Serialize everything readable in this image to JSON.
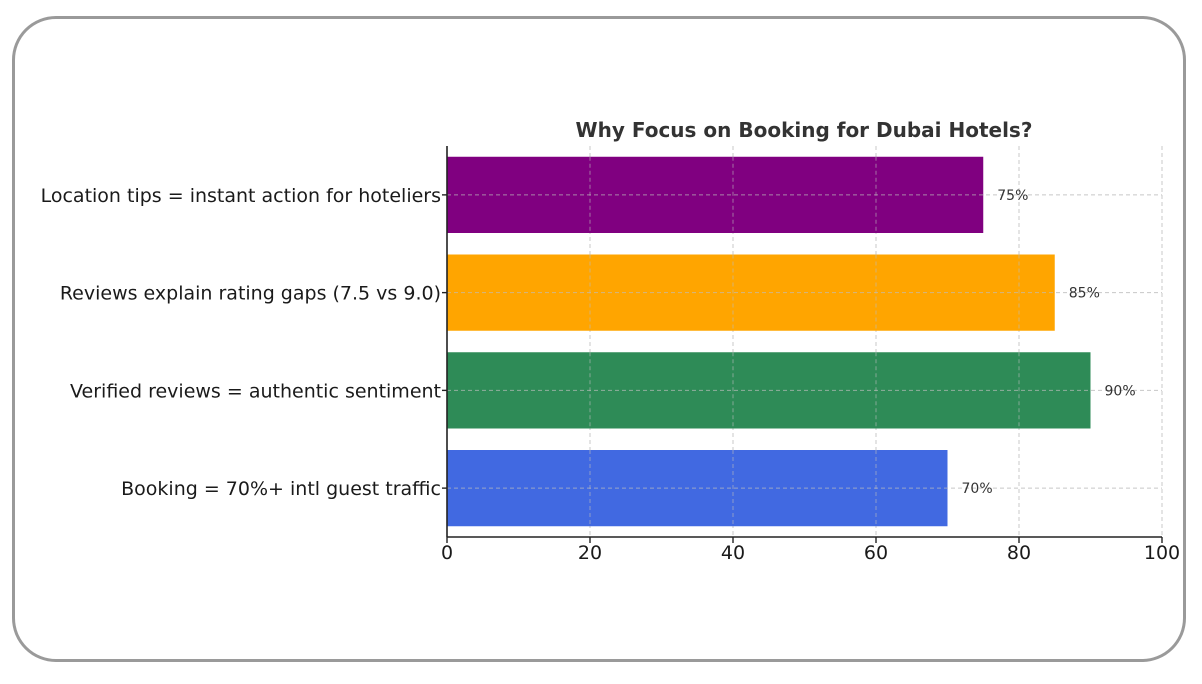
{
  "chart_data": {
    "type": "bar",
    "orientation": "horizontal",
    "title": "Why Focus on Booking for Dubai Hotels?",
    "categories": [
      "Booking = 70%+ intl guest traffic",
      "Verified reviews = authentic sentiment",
      "Reviews explain rating gaps (7.5 vs 9.0)",
      "Location tips = instant action for hoteliers"
    ],
    "values": [
      70,
      90,
      85,
      75
    ],
    "data_labels": [
      "70%",
      "90%",
      "85%",
      "75%"
    ],
    "colors": [
      "#4169e1",
      "#2e8b57",
      "#ffa500",
      "#800080"
    ],
    "xlim": [
      0,
      100
    ],
    "xticks": [
      "0",
      "20",
      "40",
      "60",
      "80",
      "100"
    ],
    "xlabel": "",
    "ylabel": "",
    "grid": true
  }
}
